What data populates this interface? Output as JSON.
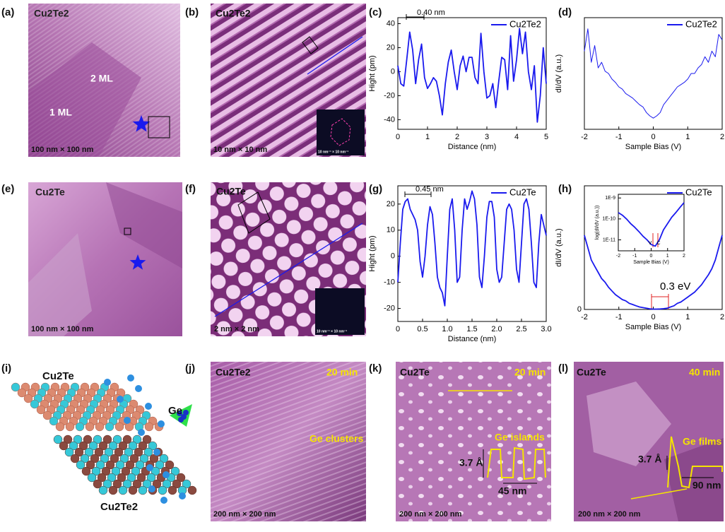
{
  "panels": [
    {
      "label": "(a)",
      "texts": [
        "Cu2Te2",
        "2 ML",
        "1 ML",
        "100 nm × 100 nm"
      ]
    },
    {
      "label": "(b)",
      "texts": [
        "Cu2Te2",
        "10 nm × 10 nm",
        "10 nm⁻¹ × 10 nm⁻¹"
      ]
    },
    {
      "label": "(c)",
      "texts": []
    },
    {
      "label": "(d)",
      "texts": []
    },
    {
      "label": "(e)",
      "texts": [
        "Cu2Te",
        "100 nm × 100 nm"
      ]
    },
    {
      "label": "(f)",
      "texts": [
        "Cu2Te",
        "2 nm × 2 nm",
        "10 nm⁻¹ × 10 nm⁻¹"
      ]
    },
    {
      "label": "(g)",
      "texts": []
    },
    {
      "label": "(h)",
      "texts": []
    },
    {
      "label": "(i)",
      "texts": [
        "Cu2Te",
        "Ge",
        "Cu2Te2"
      ]
    },
    {
      "label": "(j)",
      "texts": [
        "Cu2Te2",
        "20 min",
        "Ge clusters",
        "200 nm × 200 nm"
      ]
    },
    {
      "label": "(k)",
      "texts": [
        "Cu2Te",
        "20 min",
        "Ge islands",
        "3.7 Å",
        "45 nm",
        "200 nm × 200 nm"
      ]
    },
    {
      "label": "(l)",
      "texts": [
        "Cu2Te",
        "40 min",
        "Ge films",
        "3.7 Å",
        "90 nm",
        "200 nm × 200 nm"
      ]
    }
  ],
  "chart_data": [
    {
      "type": "line",
      "x_label": "Distance (nm)",
      "y_label": "Hight (pm)",
      "xlim": [
        0,
        5
      ],
      "ylim": [
        -48,
        45
      ],
      "xticks": [
        0,
        1,
        2,
        3,
        4,
        5
      ],
      "yticks": [
        -40,
        -20,
        0,
        20,
        40
      ],
      "legend": "upper right",
      "annotations": [
        "0.40 nm"
      ],
      "x": [
        0,
        0.1,
        0.2,
        0.3,
        0.4,
        0.5,
        0.6,
        0.7,
        0.8,
        0.9,
        1.0,
        1.1,
        1.2,
        1.3,
        1.4,
        1.5,
        1.6,
        1.7,
        1.8,
        1.9,
        2.0,
        2.1,
        2.2,
        2.3,
        2.4,
        2.5,
        2.6,
        2.7,
        2.8,
        2.9,
        3.0,
        3.1,
        3.2,
        3.3,
        3.4,
        3.5,
        3.6,
        3.7,
        3.8,
        3.9,
        4.0,
        4.1,
        4.2,
        4.3,
        4.4,
        4.5,
        4.6,
        4.7,
        4.8,
        4.9,
        5.0
      ],
      "series": [
        {
          "name": "Cu2Te2",
          "color": "#1a1aee",
          "values": [
            5,
            -10,
            -12,
            10,
            33,
            18,
            -10,
            10,
            23,
            -5,
            -14,
            -10,
            -5,
            -8,
            -20,
            -36,
            -10,
            8,
            18,
            0,
            -15,
            5,
            13,
            0,
            12,
            12,
            -5,
            -10,
            32,
            0,
            -22,
            -20,
            -10,
            -30,
            -8,
            12,
            10,
            -15,
            30,
            -8,
            10,
            36,
            15,
            33,
            0,
            -15,
            5,
            -42,
            -20,
            20,
            -10
          ]
        }
      ]
    },
    {
      "type": "line",
      "x_label": "Sample Bias (V)",
      "y_label": "dI/dV (a.u.)",
      "xlim": [
        -2,
        2
      ],
      "ylim": [
        0,
        1
      ],
      "xticks": [
        -2,
        -1,
        0,
        1,
        2
      ],
      "legend": "upper right",
      "annotations": [],
      "x": [
        -2,
        -1.9,
        -1.8,
        -1.7,
        -1.6,
        -1.5,
        -1.4,
        -1.3,
        -1.2,
        -1.1,
        -1.0,
        -0.9,
        -0.8,
        -0.7,
        -0.6,
        -0.5,
        -0.4,
        -0.3,
        -0.2,
        -0.1,
        0,
        0.1,
        0.2,
        0.3,
        0.4,
        0.5,
        0.6,
        0.7,
        0.8,
        0.9,
        1.0,
        1.1,
        1.2,
        1.3,
        1.4,
        1.5,
        1.6,
        1.7,
        1.8,
        1.9,
        2.0
      ],
      "series": [
        {
          "name": "Cu2Te2",
          "color": "#1a1aee",
          "values": [
            0.7,
            0.9,
            0.6,
            0.75,
            0.55,
            0.6,
            0.52,
            0.5,
            0.45,
            0.42,
            0.38,
            0.36,
            0.32,
            0.3,
            0.28,
            0.25,
            0.22,
            0.2,
            0.15,
            0.12,
            0.1,
            0.12,
            0.15,
            0.22,
            0.26,
            0.3,
            0.34,
            0.38,
            0.4,
            0.42,
            0.45,
            0.5,
            0.5,
            0.55,
            0.58,
            0.65,
            0.6,
            0.7,
            0.65,
            0.85,
            0.8
          ]
        }
      ]
    },
    {
      "type": "line",
      "x_label": "Distance (nm)",
      "y_label": "Hight (pm)",
      "xlim": [
        0,
        3
      ],
      "ylim": [
        -25,
        27
      ],
      "xticks": [
        0,
        0.5,
        {
          "value": 1,
          "label": "1.0"
        },
        1.5,
        {
          "value": 2,
          "label": "2.0"
        },
        2.5,
        {
          "value": 3,
          "label": "3.0"
        }
      ],
      "yticks": [
        -20,
        -10,
        0,
        10,
        20
      ],
      "legend": "upper right",
      "annotations": [
        "0.45 nm"
      ],
      "x": [
        0,
        0.05,
        0.1,
        0.15,
        0.2,
        0.25,
        0.3,
        0.35,
        0.4,
        0.45,
        0.5,
        0.55,
        0.6,
        0.65,
        0.7,
        0.75,
        0.8,
        0.85,
        0.9,
        0.95,
        1.0,
        1.05,
        1.1,
        1.15,
        1.2,
        1.25,
        1.3,
        1.35,
        1.4,
        1.45,
        1.5,
        1.55,
        1.6,
        1.65,
        1.7,
        1.75,
        1.8,
        1.85,
        1.9,
        1.95,
        2.0,
        2.05,
        2.1,
        2.15,
        2.2,
        2.25,
        2.3,
        2.35,
        2.4,
        2.45,
        2.5,
        2.55,
        2.6,
        2.65,
        2.7,
        2.75,
        2.8,
        2.85,
        2.9,
        2.95,
        3.0
      ],
      "series": [
        {
          "name": "Cu2Te",
          "color": "#1a1aee",
          "values": [
            -10,
            5,
            18,
            21,
            22,
            18,
            16,
            14,
            10,
            -2,
            -8,
            0,
            12,
            19,
            16,
            5,
            -8,
            -12,
            -14,
            -19,
            0,
            18,
            22,
            10,
            -10,
            -8,
            10,
            22,
            18,
            21,
            25,
            22,
            12,
            -8,
            -12,
            0,
            15,
            21,
            21,
            15,
            -5,
            -10,
            -8,
            5,
            18,
            20,
            18,
            10,
            -5,
            -10,
            5,
            20,
            22,
            18,
            5,
            -10,
            -12,
            5,
            16,
            12,
            8
          ]
        }
      ]
    },
    {
      "type": "line",
      "x_label": "Sample Bias (V)",
      "y_label": "dI/dV (a.u.)",
      "xlim": [
        -2,
        2
      ],
      "ylim": [
        0,
        1
      ],
      "xticks": [
        -2,
        -1,
        0,
        1,
        2
      ],
      "yticks": [
        0
      ],
      "legend": "upper right",
      "annotations": [
        "0.3 eV"
      ],
      "x": [
        -2,
        -1.9,
        -1.8,
        -1.7,
        -1.6,
        -1.5,
        -1.4,
        -1.3,
        -1.2,
        -1.1,
        -1.0,
        -0.9,
        -0.8,
        -0.7,
        -0.6,
        -0.5,
        -0.4,
        -0.3,
        -0.2,
        -0.1,
        0,
        0.1,
        0.2,
        0.3,
        0.4,
        0.5,
        0.6,
        0.7,
        0.8,
        0.9,
        1.0,
        1.1,
        1.2,
        1.3,
        1.4,
        1.5,
        1.6,
        1.7,
        1.8,
        1.9,
        2.0
      ],
      "series": [
        {
          "name": "Cu2Te",
          "color": "#1a1aee",
          "values": [
            0.6,
            0.5,
            0.4,
            0.35,
            0.3,
            0.25,
            0.22,
            0.18,
            0.15,
            0.12,
            0.1,
            0.08,
            0.07,
            0.05,
            0.04,
            0.03,
            0.02,
            0.015,
            0.01,
            0.005,
            0.003,
            0.003,
            0.004,
            0.006,
            0.01,
            0.02,
            0.03,
            0.05,
            0.06,
            0.08,
            0.1,
            0.12,
            0.14,
            0.17,
            0.2,
            0.24,
            0.28,
            0.33,
            0.4,
            0.5,
            0.6
          ]
        }
      ]
    },
    {
      "type": "line",
      "x_label": "Sample Bias (V)",
      "y_label": "log(dI/dV (a.u.))",
      "log_y": true,
      "xlim": [
        -2,
        2
      ],
      "ylim": [
        3e-12,
        1.5e-09
      ],
      "xticks": [
        -2,
        -1,
        0,
        1,
        2
      ],
      "yticks": [
        {
          "value": 1e-09,
          "label": "1E-9"
        },
        {
          "value": 1e-10,
          "label": "1E-10"
        },
        {
          "value": 1e-11,
          "label": "1E-11"
        }
      ],
      "annotations": [
        "V",
        "C"
      ],
      "x": [
        -2,
        -1.75,
        -1.5,
        -1.25,
        -1,
        -0.75,
        -0.5,
        -0.25,
        0,
        0.25,
        0.5,
        0.75,
        1,
        1.25,
        1.5,
        1.75,
        2
      ],
      "series": [
        {
          "name": null,
          "color": "#1a1aee",
          "values": [
            2e-10,
            1.5e-10,
            1e-10,
            6e-11,
            4e-11,
            2.5e-11,
            1.5e-11,
            1e-11,
            6e-12,
            5e-12,
            1e-11,
            3e-11,
            6e-11,
            1.2e-10,
            2e-10,
            3.5e-10,
            6e-10
          ]
        }
      ]
    }
  ]
}
